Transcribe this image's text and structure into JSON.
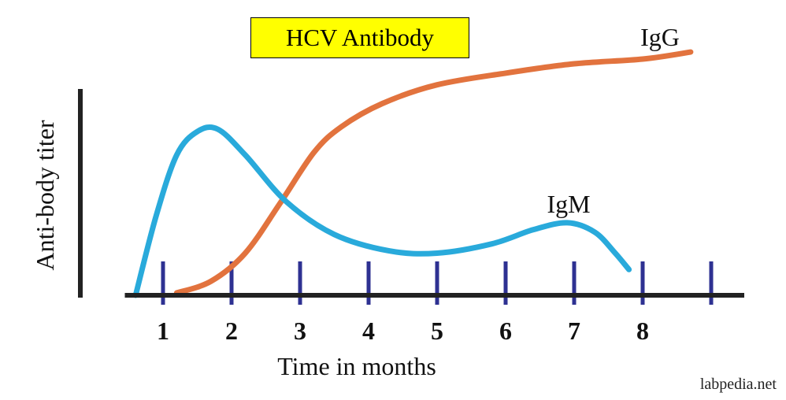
{
  "chart_data": {
    "type": "line",
    "title": "HCV Antibody",
    "xlabel": "Time in months",
    "ylabel": "Anti-body titer",
    "x_ticks": [
      1,
      2,
      3,
      4,
      5,
      6,
      7,
      8
    ],
    "xlim": [
      0.5,
      8.8
    ],
    "ylim": [
      0,
      1
    ],
    "grid": false,
    "series": [
      {
        "name": "IgG",
        "color": "#e2733e",
        "points": [
          [
            1.2,
            0.01
          ],
          [
            1.7,
            0.06
          ],
          [
            2.2,
            0.18
          ],
          [
            2.7,
            0.39
          ],
          [
            3.2,
            0.61
          ],
          [
            3.6,
            0.72
          ],
          [
            4.2,
            0.82
          ],
          [
            5.0,
            0.9
          ],
          [
            6.0,
            0.95
          ],
          [
            7.0,
            0.99
          ],
          [
            8.0,
            1.01
          ],
          [
            8.7,
            1.04
          ]
        ]
      },
      {
        "name": "IgM",
        "color": "#29aadb",
        "points": [
          [
            0.6,
            0.0
          ],
          [
            0.9,
            0.34
          ],
          [
            1.2,
            0.6
          ],
          [
            1.5,
            0.7
          ],
          [
            1.8,
            0.71
          ],
          [
            2.2,
            0.6
          ],
          [
            2.8,
            0.4
          ],
          [
            3.5,
            0.26
          ],
          [
            4.3,
            0.19
          ],
          [
            5.0,
            0.18
          ],
          [
            5.8,
            0.22
          ],
          [
            6.4,
            0.28
          ],
          [
            6.9,
            0.31
          ],
          [
            7.3,
            0.27
          ],
          [
            7.6,
            0.18
          ],
          [
            7.8,
            0.11
          ]
        ]
      }
    ],
    "annotations": [
      "IgG",
      "IgM"
    ]
  },
  "watermark": "labpedia.net",
  "colors": {
    "axis": "#222222",
    "tick": "#2e3192",
    "title_bg": "#ffff00"
  }
}
